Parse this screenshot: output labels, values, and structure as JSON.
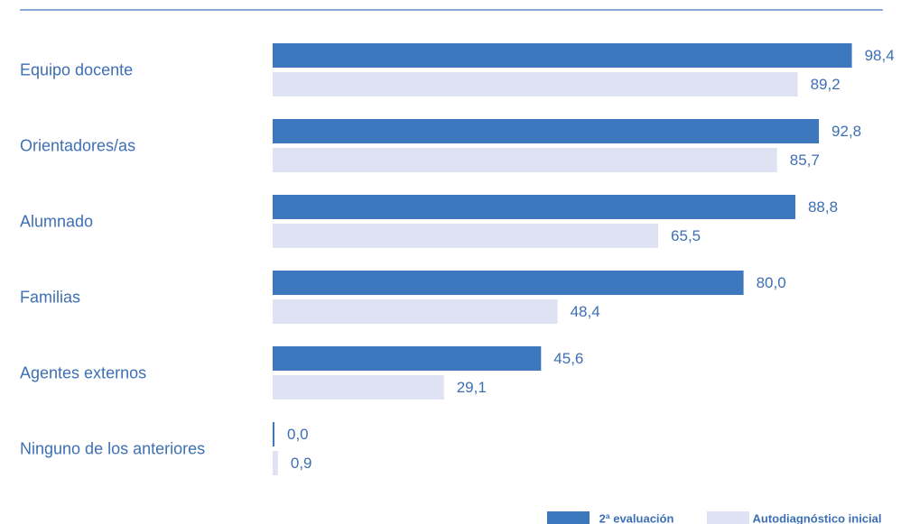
{
  "chart_data": {
    "type": "bar",
    "orientation": "horizontal",
    "categories": [
      "Equipo docente",
      "Orientadores/as",
      "Alumnado",
      "Familias",
      "Agentes externos",
      "Ninguno de los anteriores"
    ],
    "series": [
      {
        "name": "2ª evaluación",
        "values": [
          98.4,
          92.8,
          88.8,
          80.0,
          45.6,
          0.0
        ],
        "labels": [
          "98,4",
          "92,8",
          "88,8",
          "80,0",
          "45,6",
          "0,0"
        ],
        "color": "#3d78be"
      },
      {
        "name": "Autodiagnóstico inicial",
        "values": [
          89.2,
          85.7,
          65.5,
          48.4,
          29.1,
          0.9
        ],
        "labels": [
          "89,2",
          "85,7",
          "65,5",
          "48,4",
          "29,1",
          "0,9"
        ],
        "color": "#dfe2f3"
      }
    ],
    "xlim": [
      0,
      100
    ],
    "grid": false,
    "legend_position": "bottom-right",
    "text_color": "#3d6fb5",
    "top_rule_color": "#3d78be"
  }
}
